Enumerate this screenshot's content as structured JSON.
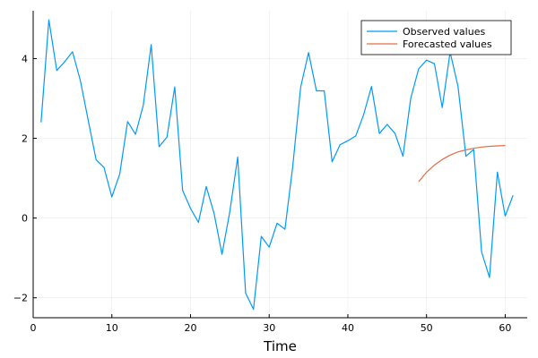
{
  "chart_data": {
    "type": "line",
    "title": "",
    "xlabel": "Time",
    "ylabel": "",
    "xlim": [
      0,
      62.8
    ],
    "ylim": [
      -2.5,
      5.2
    ],
    "x_ticks": [
      0,
      10,
      20,
      30,
      40,
      50,
      60
    ],
    "y_ticks": [
      -2,
      0,
      2,
      4
    ],
    "grid": true,
    "legend_position": "top-right",
    "series": [
      {
        "name": "Observed values",
        "color": "#009AFA",
        "x": [
          1,
          2,
          3,
          4,
          5,
          6,
          7,
          8,
          9,
          10,
          11,
          12,
          13,
          14,
          15,
          16,
          17,
          18,
          19,
          20,
          21,
          22,
          23,
          24,
          25,
          26,
          27,
          28,
          29,
          30,
          31,
          32,
          33,
          34,
          35,
          36,
          37,
          38,
          39,
          40,
          41,
          42,
          43,
          44,
          45,
          46,
          47,
          48,
          49,
          50,
          51,
          52,
          53,
          54,
          55,
          56,
          57,
          58,
          59,
          60,
          61
        ],
        "values": [
          2.4,
          4.97,
          3.7,
          3.92,
          4.17,
          3.45,
          2.45,
          1.46,
          1.27,
          0.53,
          1.1,
          2.42,
          2.1,
          2.83,
          4.35,
          1.79,
          2.03,
          3.29,
          0.69,
          0.24,
          -0.11,
          0.79,
          0.11,
          -0.91,
          0.16,
          1.53,
          -1.88,
          -2.29,
          -0.46,
          -0.73,
          -0.13,
          -0.28,
          1.3,
          3.28,
          4.15,
          3.19,
          3.19,
          1.41,
          1.84,
          1.94,
          2.06,
          2.59,
          3.3,
          2.12,
          2.35,
          2.12,
          1.55,
          3.01,
          3.74,
          3.96,
          3.87,
          2.77,
          4.16,
          3.3,
          1.55,
          1.72,
          -0.85,
          -1.49,
          1.15,
          0.05,
          0.57
        ]
      },
      {
        "name": "Forecasted values",
        "color": "#E26F46",
        "x": [
          49,
          50,
          51,
          52,
          53,
          54,
          55,
          56,
          57,
          58,
          59,
          60
        ],
        "values": [
          0.91,
          1.15,
          1.33,
          1.47,
          1.58,
          1.66,
          1.71,
          1.75,
          1.78,
          1.8,
          1.81,
          1.82
        ]
      }
    ]
  }
}
